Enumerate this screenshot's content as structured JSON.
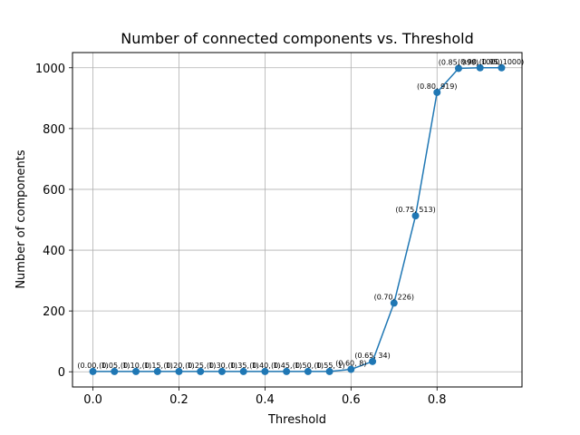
{
  "chart_data": {
    "type": "line",
    "title": "Number of connected components vs. Threshold",
    "xlabel": "Threshold",
    "ylabel": "Number of components",
    "xlim": [
      -0.0475,
      0.9975
    ],
    "ylim": [
      -50,
      1050
    ],
    "xticks": [
      0.0,
      0.2,
      0.4,
      0.6,
      0.8
    ],
    "xtick_labels": [
      "0.0",
      "0.2",
      "0.4",
      "0.6",
      "0.8"
    ],
    "yticks": [
      0,
      200,
      400,
      600,
      800,
      1000
    ],
    "ytick_labels": [
      "0",
      "200",
      "400",
      "600",
      "800",
      "1000"
    ],
    "grid": true,
    "legend": "none",
    "line_color": "#1f77b4",
    "marker": "circle",
    "x": [
      0.0,
      0.05,
      0.1,
      0.15,
      0.2,
      0.25,
      0.3,
      0.35,
      0.4,
      0.45,
      0.5,
      0.55,
      0.6,
      0.65,
      0.7,
      0.75,
      0.8,
      0.85,
      0.9,
      0.95
    ],
    "y": [
      1,
      1,
      1,
      1,
      1,
      1,
      1,
      1,
      1,
      1,
      1,
      1,
      8,
      34,
      226,
      513,
      919,
      998,
      1000,
      1000
    ],
    "point_labels": [
      "(0.00, 1)",
      "(0.05, 1)",
      "(0.10, 1)",
      "(0.15, 1)",
      "(0.20, 1)",
      "(0.25, 1)",
      "(0.30, 1)",
      "(0.35, 1)",
      "(0.40, 1)",
      "(0.45, 1)",
      "(0.50, 1)",
      "(0.55, 1)",
      "(0.60, 8)",
      "(0.65, 34)",
      "(0.70, 226)",
      "(0.75, 513)",
      "(0.80, 919)",
      "(0.85, 998)",
      "(0.90, 1000)",
      "(0.95, 1000)"
    ]
  }
}
